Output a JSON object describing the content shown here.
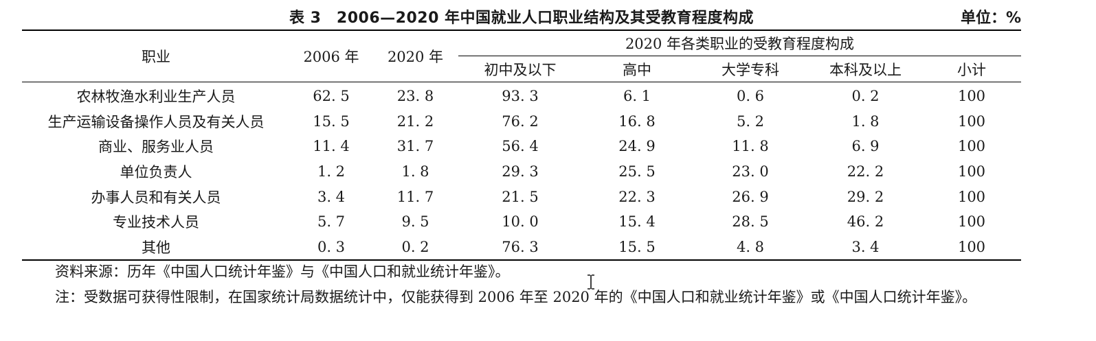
{
  "title": "表 3　2006—2020 年中国就业人口职业结构及其受教育程度构成",
  "unit": "单位：%",
  "header": {
    "occupation": "职业",
    "year_2006": "2006 年",
    "year_2020": "2020 年",
    "group": "2020 年各类职业的受教育程度构成",
    "edu_levels": [
      "初中及以下",
      "高中",
      "大学专科",
      "本科及以上",
      "小计"
    ]
  },
  "rows": [
    {
      "name": "农林牧渔水利业生产人员",
      "v2006": "62. 5",
      "v2020": "23. 8",
      "junior": "93. 3",
      "senior": "6. 1",
      "college": "0. 6",
      "bachelor": "0. 2",
      "total": "100"
    },
    {
      "name": "生产运输设备操作人员及有关人员",
      "v2006": "15. 5",
      "v2020": "21. 2",
      "junior": "76. 2",
      "senior": "16. 8",
      "college": "5. 2",
      "bachelor": "1. 8",
      "total": "100"
    },
    {
      "name": "商业、服务业人员",
      "v2006": "11. 4",
      "v2020": "31. 7",
      "junior": "56. 4",
      "senior": "24. 9",
      "college": "11. 8",
      "bachelor": "6. 9",
      "total": "100"
    },
    {
      "name": "单位负责人",
      "v2006": "1. 2",
      "v2020": "1. 8",
      "junior": "29. 3",
      "senior": "25. 5",
      "college": "23. 0",
      "bachelor": "22. 2",
      "total": "100"
    },
    {
      "name": "办事人员和有关人员",
      "v2006": "3. 4",
      "v2020": "11. 7",
      "junior": "21. 5",
      "senior": "22. 3",
      "college": "26. 9",
      "bachelor": "29. 2",
      "total": "100"
    },
    {
      "name": "专业技术人员",
      "v2006": "5. 7",
      "v2020": "9. 5",
      "junior": "10. 0",
      "senior": "15. 4",
      "college": "28. 5",
      "bachelor": "46. 2",
      "total": "100"
    },
    {
      "name": "其他",
      "v2006": "0. 3",
      "v2020": "0. 2",
      "junior": "76. 3",
      "senior": "15. 5",
      "college": "4. 8",
      "bachelor": "3. 4",
      "total": "100"
    }
  ],
  "notes": {
    "source": "资料来源：历年《中国人口统计年鉴》与《中国人口和就业统计年鉴》。",
    "note": "注：受数据可获得性限制，在国家统计局数据统计中，仅能获得到 2006 年至 2020 年的《中国人口和就业统计年鉴》或《中国人口统计年鉴》。"
  },
  "cursor_icon": "text-cursor-icon"
}
